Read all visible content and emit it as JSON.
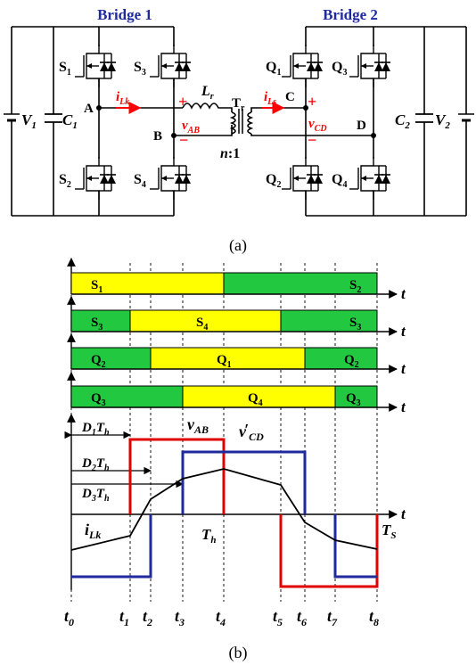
{
  "circuit": {
    "caption": "(a)",
    "bridge1": "Bridge 1",
    "bridge2": "Bridge 2",
    "v1": "V",
    "v1_sub": "1",
    "c1": "C",
    "c1_sub": "1",
    "c2": "C",
    "c2_sub": "2",
    "v2": "V",
    "v2_sub": "2",
    "switches": [
      {
        "label": "S",
        "sub": "1"
      },
      {
        "label": "S",
        "sub": "3"
      },
      {
        "label": "S",
        "sub": "2"
      },
      {
        "label": "S",
        "sub": "4"
      },
      {
        "label": "Q",
        "sub": "1"
      },
      {
        "label": "Q",
        "sub": "3"
      },
      {
        "label": "Q",
        "sub": "2"
      },
      {
        "label": "Q",
        "sub": "4"
      }
    ],
    "node_a": "A",
    "node_b": "B",
    "node_c": "C",
    "node_d": "D",
    "ilk": "i",
    "ilk_sub": "Lk",
    "lr": "L",
    "lr_sub": "r",
    "tr": "T",
    "tr_sub": "r",
    "ils": "i",
    "ils_sub": "Ls",
    "vab": "v",
    "vab_sub": "AB",
    "vcd": "v",
    "vcd_sub": "CD",
    "ratio_n": "n",
    "ratio_rest": ":1",
    "plus": "+",
    "minus": "−"
  },
  "waveforms": {
    "caption": "(b)",
    "t_axis": "t",
    "rows": [
      {
        "left": "S",
        "left_sub": "1",
        "mid": "",
        "mid_sub": "",
        "right": "S",
        "right_sub": "2"
      },
      {
        "left": "S",
        "left_sub": "3",
        "mid": "S",
        "mid_sub": "4",
        "right": "S",
        "right_sub": "3"
      },
      {
        "left": "Q",
        "left_sub": "2",
        "mid": "Q",
        "mid_sub": "1",
        "right": "Q",
        "right_sub": "2"
      },
      {
        "left": "Q",
        "left_sub": "3",
        "mid": "Q",
        "mid_sub": "4",
        "right": "Q",
        "right_sub": "3"
      }
    ],
    "d1": "D",
    "d1_sub": "1",
    "d1_t": "T",
    "d1_h": "h",
    "d2": "D",
    "d2_sub": "2",
    "d2_t": "T",
    "d2_h": "h",
    "d3": "D",
    "d3_sub": "3",
    "d3_t": "T",
    "d3_h": "h",
    "vab": "v",
    "vab_sub": "AB",
    "vcd": "v",
    "vcd_prime": "′",
    "vcd_sub": "CD",
    "ilk": "i",
    "ilk_sub": "Lk",
    "th": "T",
    "th_sub": "h",
    "ts": "T",
    "ts_sub": "S",
    "ticks": [
      {
        "t": "t",
        "sub": "0"
      },
      {
        "t": "t",
        "sub": "1"
      },
      {
        "t": "t",
        "sub": "2"
      },
      {
        "t": "t",
        "sub": "3"
      },
      {
        "t": "t",
        "sub": "4"
      },
      {
        "t": "t",
        "sub": "5"
      },
      {
        "t": "t",
        "sub": "6"
      },
      {
        "t": "t",
        "sub": "7"
      },
      {
        "t": "t",
        "sub": "8"
      }
    ],
    "colors": {
      "on": "#ffff00",
      "off": "#22c840",
      "vab": "#e00000",
      "vcd": "#1f2a9e",
      "ilk": "#000000"
    }
  }
}
